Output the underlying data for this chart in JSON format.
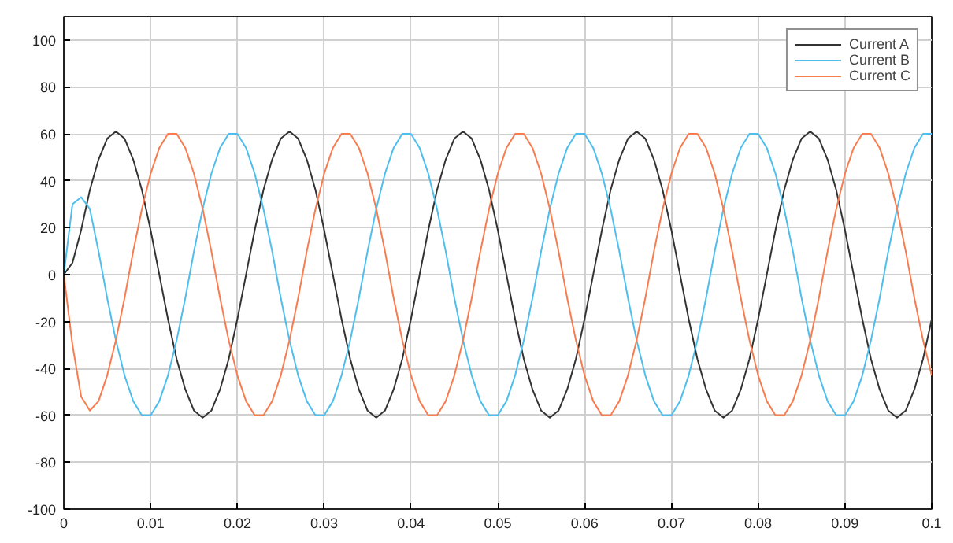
{
  "chart_data": {
    "type": "line",
    "x": [
      0,
      0.001,
      0.002,
      0.003,
      0.004,
      0.005,
      0.006,
      0.007,
      0.008,
      0.009,
      0.01,
      0.011,
      0.012,
      0.013,
      0.014,
      0.015,
      0.016,
      0.017,
      0.018,
      0.019,
      0.02,
      0.021,
      0.022,
      0.023,
      0.024,
      0.025,
      0.026,
      0.027,
      0.028,
      0.029,
      0.03,
      0.031,
      0.032,
      0.033,
      0.034,
      0.035,
      0.036,
      0.037,
      0.038,
      0.039,
      0.04,
      0.041,
      0.042,
      0.043,
      0.044,
      0.045,
      0.046,
      0.047,
      0.048,
      0.049,
      0.05,
      0.051,
      0.052,
      0.053,
      0.054,
      0.055,
      0.056,
      0.057,
      0.058,
      0.059,
      0.06,
      0.061,
      0.062,
      0.063,
      0.064,
      0.065,
      0.066,
      0.067,
      0.068,
      0.069,
      0.07,
      0.071,
      0.072,
      0.073,
      0.074,
      0.075,
      0.076,
      0.077,
      0.078,
      0.079,
      0.08,
      0.081,
      0.082,
      0.083,
      0.084,
      0.085,
      0.086,
      0.087,
      0.088,
      0.089,
      0.09,
      0.091,
      0.092,
      0.093,
      0.094,
      0.095,
      0.096,
      0.097,
      0.098,
      0.099,
      0.1
    ],
    "series": [
      {
        "name": "Current A",
        "color": "#333333",
        "values": [
          0,
          5,
          19,
          36,
          49,
          58,
          61,
          58,
          49,
          36,
          19,
          0,
          -19,
          -36,
          -49,
          -58,
          -61,
          -58,
          -49,
          -36,
          -19,
          0,
          19,
          36,
          49,
          58,
          61,
          58,
          49,
          36,
          19,
          0,
          -19,
          -36,
          -49,
          -58,
          -61,
          -58,
          -49,
          -36,
          -19,
          0,
          19,
          36,
          49,
          58,
          61,
          58,
          49,
          36,
          19,
          0,
          -19,
          -36,
          -49,
          -58,
          -61,
          -58,
          -49,
          -36,
          -19,
          0,
          19,
          36,
          49,
          58,
          61,
          58,
          49,
          36,
          19,
          0,
          -19,
          -36,
          -49,
          -58,
          -61,
          -58,
          -49,
          -36,
          -19,
          0,
          19,
          36,
          49,
          58,
          61,
          58,
          49,
          36,
          19,
          0,
          -19,
          -36,
          -49,
          -58,
          -61,
          -58,
          -49,
          -36,
          -19
        ]
      },
      {
        "name": "Current B",
        "color": "#4dbeee",
        "values": [
          0,
          30,
          33,
          28,
          10,
          -10,
          -28,
          -43,
          -54,
          -60,
          -60,
          -54,
          -43,
          -28,
          -10,
          10,
          28,
          43,
          54,
          60,
          60,
          54,
          43,
          28,
          10,
          -10,
          -28,
          -43,
          -54,
          -60,
          -60,
          -54,
          -43,
          -28,
          -10,
          10,
          28,
          43,
          54,
          60,
          60,
          54,
          43,
          28,
          10,
          -10,
          -28,
          -43,
          -54,
          -60,
          -60,
          -54,
          -43,
          -28,
          -10,
          10,
          28,
          43,
          54,
          60,
          60,
          54,
          43,
          28,
          10,
          -10,
          -28,
          -43,
          -54,
          -60,
          -60,
          -54,
          -43,
          -28,
          -10,
          10,
          28,
          43,
          54,
          60,
          60,
          54,
          43,
          28,
          10,
          -10,
          -28,
          -43,
          -54,
          -60,
          -60,
          -54,
          -43,
          -28,
          -10,
          10,
          28,
          43,
          54,
          60,
          60
        ]
      },
      {
        "name": "Current C",
        "color": "#f97c4f",
        "values": [
          0,
          -30,
          -52,
          -58,
          -54,
          -43,
          -28,
          -10,
          10,
          28,
          43,
          54,
          60,
          60,
          54,
          43,
          28,
          10,
          -10,
          -28,
          -43,
          -54,
          -60,
          -60,
          -54,
          -43,
          -28,
          -10,
          10,
          28,
          43,
          54,
          60,
          60,
          54,
          43,
          28,
          10,
          -10,
          -28,
          -43,
          -54,
          -60,
          -60,
          -54,
          -43,
          -28,
          -10,
          10,
          28,
          43,
          54,
          60,
          60,
          54,
          43,
          28,
          10,
          -10,
          -28,
          -43,
          -54,
          -60,
          -60,
          -54,
          -43,
          -28,
          -10,
          10,
          28,
          43,
          54,
          60,
          60,
          54,
          43,
          28,
          10,
          -10,
          -28,
          -43,
          -54,
          -60,
          -60,
          -54,
          -43,
          -28,
          -10,
          10,
          28,
          43,
          54,
          60,
          60,
          54,
          43,
          28,
          10,
          -10,
          -28,
          -43
        ]
      }
    ],
    "xlim": [
      0,
      0.1
    ],
    "ylim": [
      -100,
      110
    ],
    "xticks": [
      0,
      0.01,
      0.02,
      0.03,
      0.04,
      0.05,
      0.06,
      0.07,
      0.08,
      0.09,
      0.1
    ],
    "yticks": [
      -100,
      -80,
      -60,
      -40,
      -20,
      0,
      20,
      40,
      60,
      80,
      100
    ],
    "grid": true,
    "legend": "top right",
    "marker": "none",
    "line_style": "solid"
  }
}
